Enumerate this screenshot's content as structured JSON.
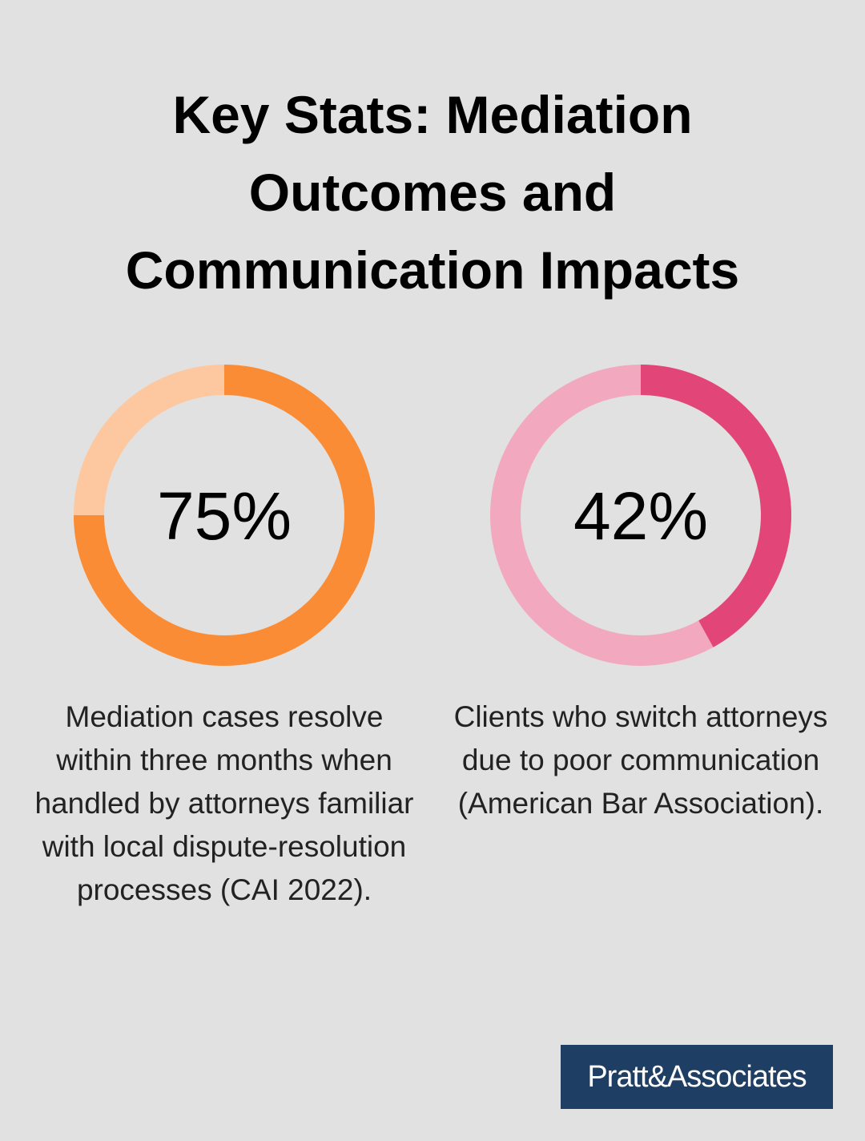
{
  "title": "Key Stats: Mediation Outcomes and Communication Impacts",
  "chart_data": [
    {
      "type": "donut",
      "values": [
        75
      ],
      "value_labels": [
        "75%"
      ],
      "color": "#fb8c36",
      "track_color": "#fdc8a0",
      "caption": "Mediation cases resolve within three months when handled by attorneys familiar with local dispute-resolution processes (CAI 2022)."
    },
    {
      "type": "donut",
      "values": [
        42
      ],
      "value_labels": [
        "42%"
      ],
      "color": "#e24577",
      "track_color": "#f2a9c0",
      "caption": "Clients who switch attorneys due to poor communication (American Bar Association)."
    }
  ],
  "logo": "Pratt&Associates"
}
